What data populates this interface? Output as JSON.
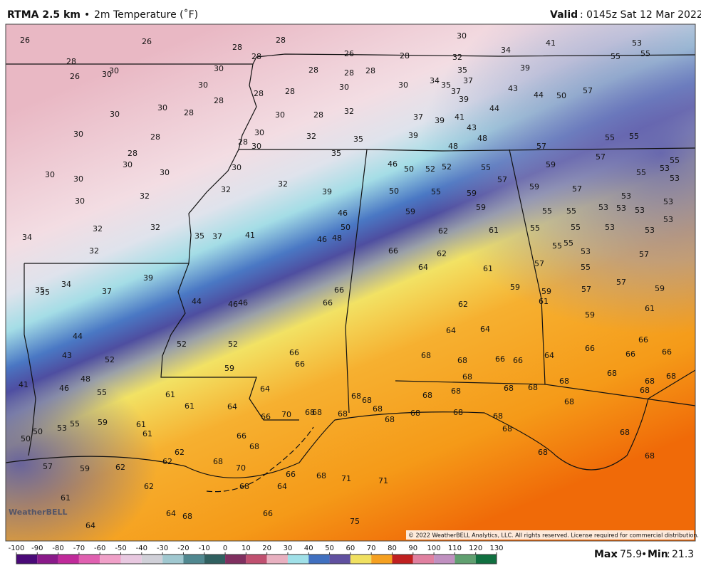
{
  "header": {
    "product": "RTMA 2.5 km",
    "separator": "•",
    "field": "2m Temperature (˚F)",
    "valid_label": "Valid",
    "valid_time": ": 0145z Sat 12 Mar 2022"
  },
  "map": {
    "logo": "WeatherBELL",
    "copyright": "© 2022 WeatherBELL Analytics, LLC. All rights reserved. License required for commercial distribution.",
    "station_values": [
      26,
      26,
      28,
      28,
      26,
      28,
      30,
      34,
      41,
      53,
      55,
      55,
      28,
      30,
      30,
      26,
      30,
      28,
      28,
      28,
      28,
      32,
      35,
      39,
      30,
      28,
      28,
      28,
      30,
      30,
      34,
      35,
      37,
      37,
      43,
      44,
      50,
      57,
      39,
      30,
      30,
      28,
      30,
      28,
      32,
      37,
      39,
      41,
      44,
      43,
      48,
      30,
      28,
      30,
      32,
      35,
      39,
      48,
      57,
      55,
      55,
      28,
      30,
      30,
      28,
      30,
      35,
      46,
      50,
      52,
      52,
      55,
      59,
      57,
      55,
      53,
      53,
      55,
      30,
      30,
      30,
      32,
      32,
      39,
      50,
      55,
      57,
      59,
      59,
      57,
      53,
      53,
      30,
      32,
      59,
      59,
      46,
      50,
      55,
      55,
      53,
      53,
      53,
      34,
      32,
      32,
      35,
      37,
      41,
      46,
      48,
      62,
      61,
      55,
      55,
      53,
      53,
      53,
      32,
      66,
      62,
      55,
      55,
      53,
      57,
      34,
      35,
      35,
      37,
      39,
      64,
      61,
      57,
      55,
      66,
      66,
      44,
      46,
      46,
      59,
      59,
      57,
      57,
      59,
      62,
      61,
      59,
      61,
      44,
      64,
      64,
      66,
      43,
      52,
      52,
      52,
      66,
      68,
      68,
      66,
      66,
      64,
      66,
      66,
      66,
      48,
      46,
      41,
      59,
      66,
      68,
      68,
      68,
      68,
      68,
      55,
      61,
      64,
      68,
      68,
      68,
      68,
      68,
      68,
      61,
      64,
      68,
      68,
      68,
      66,
      70,
      68,
      68,
      68,
      68,
      68,
      68,
      68,
      59,
      61,
      55,
      53,
      50,
      50,
      61,
      66,
      68,
      68,
      68,
      62,
      62,
      68,
      68,
      68,
      57,
      59,
      62,
      70,
      66,
      68,
      71,
      71,
      62,
      68,
      64,
      61,
      64,
      68,
      66,
      75,
      64
    ]
  },
  "colorbar": {
    "ticks": [
      -100,
      -90,
      -80,
      -70,
      -60,
      -50,
      -40,
      -30,
      -20,
      -10,
      0,
      10,
      20,
      30,
      40,
      50,
      60,
      70,
      80,
      90,
      100,
      110,
      120,
      130
    ]
  },
  "stats": {
    "max_label": "Max",
    "colon": ":",
    "max": 75.9,
    "separator": "•",
    "min_label": "Min",
    "min": 21.3
  }
}
